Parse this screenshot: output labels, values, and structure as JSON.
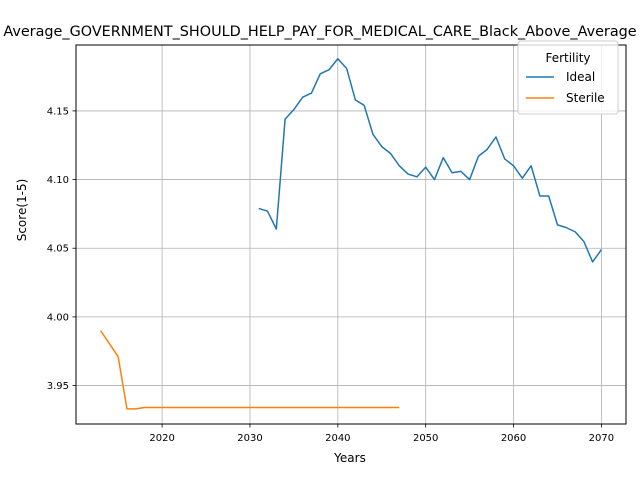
{
  "chart_data": {
    "type": "line",
    "title": "Average_GOVERNMENT_SHOULD_HELP_PAY_FOR_MEDICAL_CARE_Black_Above_Average",
    "xlabel": "Years",
    "ylabel": "Score(1-5)",
    "xlim": [
      2010.2,
      2072.8
    ],
    "ylim": [
      3.922,
      4.198
    ],
    "xticks": [
      2020,
      2030,
      2040,
      2050,
      2060,
      2070
    ],
    "yticks": [
      3.95,
      4.0,
      4.05,
      4.1,
      4.15
    ],
    "ytick_labels": [
      "3.95",
      "4.00",
      "4.05",
      "4.10",
      "4.15"
    ],
    "grid": true,
    "legend": {
      "title": "Fertility",
      "position": "top-right"
    },
    "series": [
      {
        "name": "Ideal",
        "color": "#1f77b4",
        "x": [
          2031,
          2032,
          2033,
          2034,
          2035,
          2036,
          2037,
          2038,
          2039,
          2040,
          2041,
          2042,
          2043,
          2044,
          2045,
          2046,
          2047,
          2048,
          2049,
          2050,
          2051,
          2052,
          2053,
          2054,
          2055,
          2056,
          2057,
          2058,
          2059,
          2060,
          2061,
          2062,
          2063,
          2064,
          2065,
          2066,
          2067,
          2068,
          2069,
          2070
        ],
        "y": [
          4.079,
          4.077,
          4.064,
          4.144,
          4.151,
          4.16,
          4.163,
          4.177,
          4.18,
          4.188,
          4.181,
          4.158,
          4.154,
          4.133,
          4.124,
          4.119,
          4.11,
          4.104,
          4.102,
          4.109,
          4.1,
          4.116,
          4.105,
          4.106,
          4.1,
          4.117,
          4.122,
          4.131,
          4.115,
          4.11,
          4.101,
          4.11,
          4.088,
          4.088,
          4.067,
          4.065,
          4.062,
          4.055,
          4.04,
          4.049
        ]
      },
      {
        "name": "Sterile",
        "color": "#ff7f0e",
        "x": [
          2013,
          2015,
          2016,
          2017,
          2018,
          2019,
          2020,
          2025,
          2030,
          2035,
          2040,
          2045,
          2047
        ],
        "y": [
          3.99,
          3.971,
          3.933,
          3.933,
          3.934,
          3.934,
          3.934,
          3.934,
          3.934,
          3.934,
          3.934,
          3.934,
          3.934
        ]
      }
    ]
  }
}
